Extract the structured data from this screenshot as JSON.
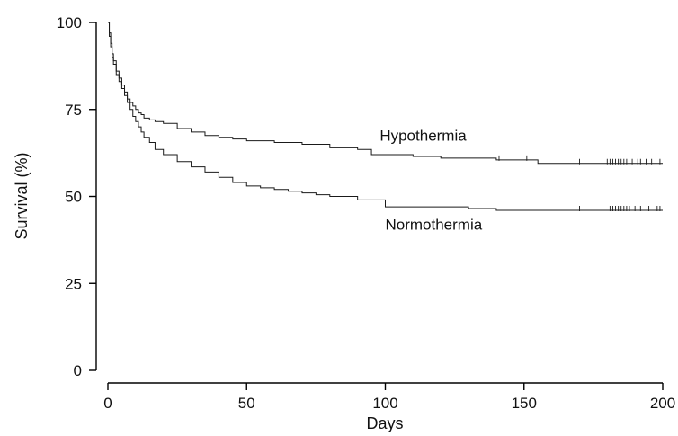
{
  "chart_data": {
    "type": "line",
    "subtype": "kaplan-meier-step",
    "xlabel": "Days",
    "ylabel": "Survival (%)",
    "xlim": [
      0,
      200
    ],
    "ylim": [
      0,
      100
    ],
    "xticks": [
      0,
      50,
      100,
      150,
      200
    ],
    "yticks": [
      0,
      25,
      50,
      75,
      100
    ],
    "grid": false,
    "legend": "none",
    "series": [
      {
        "name": "Hypothermia",
        "label_at": [
          98,
          66
        ],
        "x": [
          0,
          0.5,
          1,
          1.5,
          2,
          3,
          4,
          5,
          6,
          7,
          8,
          9,
          10,
          11,
          12,
          13,
          15,
          17,
          20,
          25,
          30,
          35,
          40,
          45,
          50,
          60,
          70,
          80,
          90,
          95,
          100,
          110,
          120,
          130,
          140,
          150,
          155,
          160,
          170,
          180,
          190,
          200
        ],
        "y": [
          100,
          97,
          94,
          91,
          89,
          86,
          84,
          82,
          80,
          78,
          77,
          76,
          75,
          74,
          73.5,
          72.5,
          72,
          71.5,
          71,
          69.5,
          68.5,
          67.5,
          67,
          66.5,
          66,
          65.5,
          65,
          64,
          63.5,
          62,
          62,
          61.5,
          61,
          61,
          60.5,
          60.5,
          59.5,
          59.5,
          59.5,
          59.5,
          59.5,
          59.5
        ],
        "censored_x": [
          141,
          151,
          170,
          180,
          181,
          182,
          183,
          184,
          185,
          186,
          187,
          189,
          191,
          192,
          194,
          196,
          199
        ]
      },
      {
        "name": "Normothermia",
        "label_at": [
          100,
          40.5
        ],
        "x": [
          0,
          0.5,
          1,
          1.5,
          2,
          3,
          4,
          5,
          6,
          7,
          8,
          9,
          10,
          11,
          12,
          13,
          15,
          17,
          20,
          25,
          30,
          35,
          40,
          45,
          50,
          55,
          60,
          65,
          70,
          75,
          80,
          90,
          100,
          110,
          120,
          130,
          140,
          150,
          160,
          170,
          180,
          190,
          200
        ],
        "y": [
          100,
          96,
          93,
          90,
          88,
          85,
          83,
          81,
          79,
          77,
          75,
          73,
          71.5,
          70,
          68.5,
          67,
          65.5,
          63.5,
          62,
          60,
          58.5,
          57,
          55.5,
          54,
          53,
          52.5,
          52,
          51.5,
          51,
          50.5,
          50,
          49,
          47,
          47,
          47,
          46.5,
          46,
          46,
          46,
          46,
          46,
          46,
          46
        ],
        "censored_x": [
          170,
          181,
          182,
          183,
          184,
          185,
          186,
          187,
          188,
          190,
          192,
          195,
          198,
          199
        ]
      }
    ]
  }
}
